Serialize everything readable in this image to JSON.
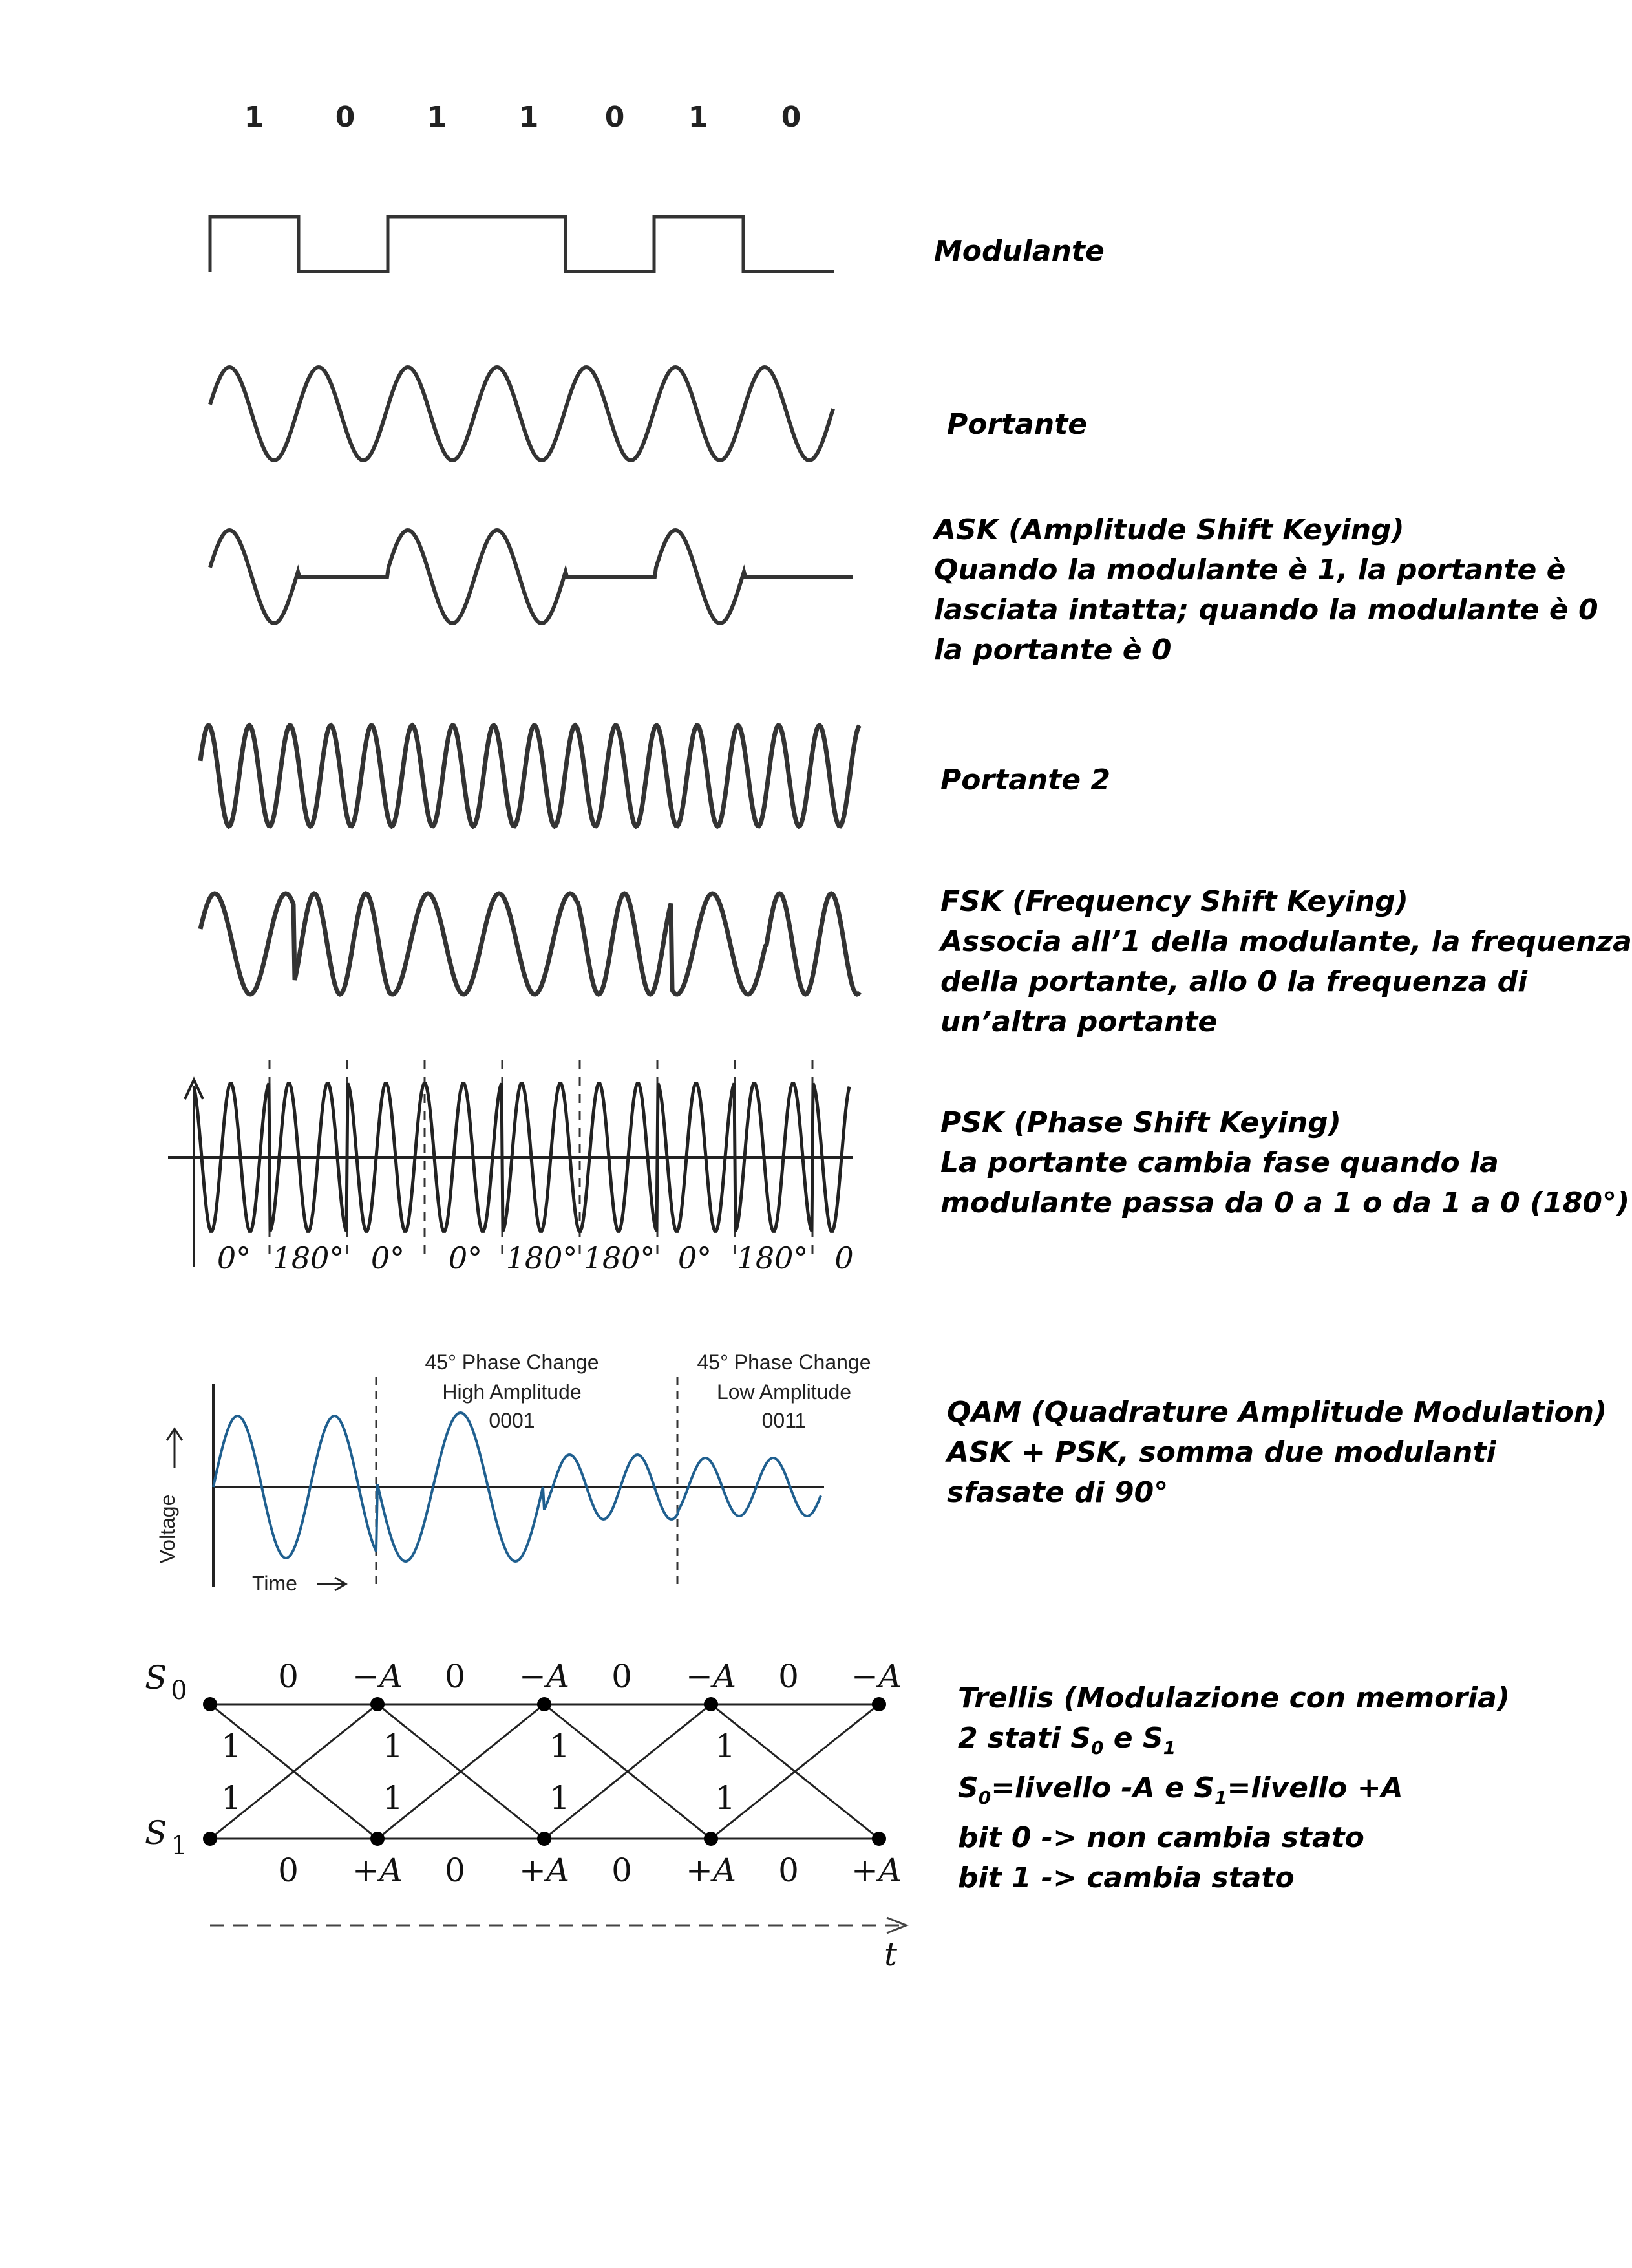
{
  "bits": [
    "1",
    "0",
    "1",
    "1",
    "0",
    "1",
    "0"
  ],
  "captions": {
    "modulante": "Modulante",
    "portante": "Portante",
    "ask": [
      "ASK (Amplitude Shift Keying)",
      "Quando la modulante è 1, la portante è",
      "lasciata intatta; quando la modulante è 0",
      "la portante è 0"
    ],
    "portante2": "Portante 2",
    "fsk": [
      "FSK (Frequency Shift Keying)",
      "Associa all’1 della modulante, la frequenza",
      "della portante, allo 0 la frequenza di",
      "un’altra portante"
    ],
    "psk": [
      "PSK (Phase Shift Keying)",
      "La portante cambia fase quando la",
      "modulante passa da 0 a 1 o da 1 a 0 (180°)"
    ],
    "qam": [
      "QAM (Quadrature Amplitude Modulation)",
      "ASK + PSK, somma due modulanti",
      "sfasate di 90°"
    ],
    "trellis": {
      "title": "Trellis (Modulazione con memoria)",
      "states_prefix": "2 stati ",
      "s": "S",
      "sub0": "0",
      "sub1": "1",
      "and": " e ",
      "eq_low": "=livello -A e ",
      "eq_high": "=livello +A",
      "bit0": "bit 0 -> non cambia stato",
      "bit1": "bit 1 -> cambia stato"
    }
  },
  "psk_phases": [
    "0°",
    "180°",
    "0°",
    "0°",
    "180°",
    "180°",
    "0°",
    "180°",
    "0"
  ],
  "qam": {
    "change1": [
      "45° Phase Change",
      "High Amplitude"
    ],
    "code1": "0001",
    "change2": [
      "45° Phase Change",
      "Low Amplitude"
    ],
    "code2": "0011",
    "ylabel": "Voltage",
    "xlabel": "Time",
    "code1_color": "#c0202a",
    "code2_color": "#2a3c9a",
    "wave_color": "#1f5f8f"
  },
  "trellis_diagram": {
    "state0": "S",
    "state0_sub": "0",
    "state1": "S",
    "state1_sub": "1",
    "top_labels": [
      "0",
      "−A",
      "0",
      "−A",
      "0",
      "−A",
      "0",
      "−A"
    ],
    "bottom_labels": [
      "0",
      "+A",
      "0",
      "+A",
      "0",
      "+A",
      "0",
      "+A"
    ],
    "upper_ones": [
      "1",
      "1",
      "1",
      "1"
    ],
    "lower_ones": [
      "1",
      "1",
      "1",
      "1"
    ],
    "time_label": "t"
  }
}
